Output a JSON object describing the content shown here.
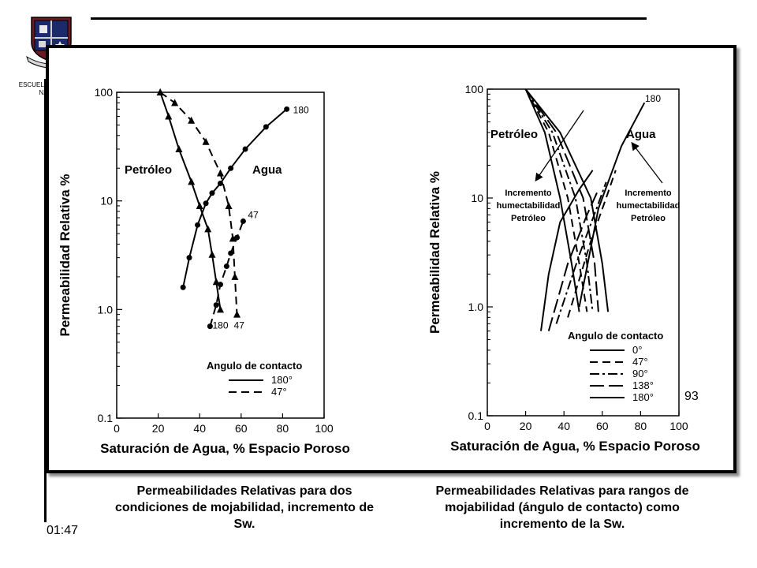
{
  "institution": {
    "name": "ESCUELA POLITECNICA NACIONAL"
  },
  "slide": {
    "page_number": "93",
    "time": "01:47",
    "captions": {
      "left": "Permeabilidades Relativas para dos condiciones de mojabilidad, incremento de Sw.",
      "right": "Permeabilidades Relativas para rangos de mojabilidad (ángulo de contacto) como incremento de la Sw."
    }
  },
  "chart_data": [
    {
      "type": "line",
      "xlabel": "Saturación de Agua, % Espacio Poroso",
      "ylabel": "Permeabilidad Relativa %",
      "xlim": [
        0,
        100
      ],
      "ylim": [
        0.1,
        100
      ],
      "y_scale": "log",
      "x_ticks": [
        "0",
        "20",
        "40",
        "60",
        "80",
        "100"
      ],
      "y_ticks": [
        {
          "value": 100,
          "label": "100"
        },
        {
          "value": 10,
          "label": "10"
        },
        {
          "value": 1,
          "label": "1.0"
        },
        {
          "value": 0.1,
          "label": "0.1"
        }
      ],
      "annotations": [
        "Petróleo",
        "Agua"
      ],
      "legend": {
        "title": "Angulo de contacto",
        "position": "bottom-right",
        "entries": [
          {
            "label": "180°",
            "style": "solid"
          },
          {
            "label": "47°",
            "style": "dashed"
          }
        ]
      },
      "series": [
        {
          "phase": "oil",
          "angle": "180°",
          "style": "solid",
          "marker": "triangle",
          "x": [
            21,
            25,
            30,
            36,
            40,
            44,
            46,
            48,
            50
          ],
          "y": [
            100,
            60,
            30,
            15,
            9,
            5.5,
            3.2,
            1.8,
            1.0
          ],
          "end_label": "180"
        },
        {
          "phase": "oil",
          "angle": "47°",
          "style": "dashed",
          "marker": "triangle",
          "x": [
            21,
            28,
            36,
            43,
            50,
            54,
            56,
            57,
            58
          ],
          "y": [
            100,
            80,
            55,
            35,
            18,
            9,
            4.5,
            2.0,
            0.9
          ],
          "end_label": "47"
        },
        {
          "phase": "water",
          "angle": "180°",
          "style": "solid",
          "marker": "circle",
          "x": [
            32,
            35,
            39,
            43,
            46,
            50,
            55,
            62,
            72,
            82
          ],
          "y": [
            1.6,
            3.0,
            6.0,
            9.5,
            11.8,
            14.5,
            20,
            30,
            48,
            70
          ],
          "end_label": "180"
        },
        {
          "phase": "water",
          "angle": "47°",
          "style": "dashed",
          "marker": "circle",
          "x": [
            45,
            48,
            50,
            53,
            55,
            58,
            61
          ],
          "y": [
            0.7,
            1.1,
            1.7,
            2.5,
            3.3,
            4.6,
            6.5
          ],
          "end_label": "47"
        }
      ]
    },
    {
      "type": "line",
      "xlabel": "Saturación de Agua, % Espacio Poroso",
      "ylabel": "Permeabilidad Relativa %",
      "xlim": [
        0,
        100
      ],
      "ylim": [
        0.1,
        100
      ],
      "y_scale": "log",
      "x_ticks": [
        "0",
        "20",
        "40",
        "60",
        "80",
        "100"
      ],
      "y_ticks": [
        {
          "value": 100,
          "label": "100"
        },
        {
          "value": 10,
          "label": "10"
        },
        {
          "value": 1,
          "label": "1.0"
        },
        {
          "value": 0.1,
          "label": "0.1"
        }
      ],
      "annotations": [
        "Petróleo",
        "Agua",
        "180",
        "Incremento humectabilidad Petróleo",
        "Incremento humectabilidad Petróleo"
      ],
      "legend": {
        "title": "Angulo de contacto",
        "position": "bottom-right",
        "entries": [
          {
            "label": "0°",
            "style": "solid"
          },
          {
            "label": "47°",
            "style": "dashed"
          },
          {
            "label": "90°",
            "style": "dash-dot"
          },
          {
            "label": "138°",
            "style": "long-dash"
          },
          {
            "label": "180°",
            "style": "solid"
          }
        ]
      },
      "series": [
        {
          "phase": "oil",
          "angle": "0°",
          "style": "solid",
          "x": [
            20,
            30,
            38,
            44,
            48
          ],
          "y": [
            100,
            40,
            10,
            2.5,
            0.9
          ]
        },
        {
          "phase": "oil",
          "angle": "47°",
          "style": "dashed",
          "x": [
            20,
            32,
            42,
            48,
            52
          ],
          "y": [
            100,
            40,
            10,
            2.5,
            0.9
          ]
        },
        {
          "phase": "oil",
          "angle": "90°",
          "style": "dash-dot",
          "x": [
            20,
            34,
            46,
            52,
            55
          ],
          "y": [
            100,
            40,
            10,
            2.5,
            0.9
          ]
        },
        {
          "phase": "oil",
          "angle": "138°",
          "style": "long-dash",
          "x": [
            20,
            36,
            50,
            56,
            58
          ],
          "y": [
            100,
            40,
            10,
            2.5,
            0.9
          ]
        },
        {
          "phase": "oil",
          "angle": "180°",
          "style": "solid",
          "x": [
            20,
            38,
            54,
            60,
            63
          ],
          "y": [
            100,
            40,
            10,
            2.5,
            0.9
          ]
        },
        {
          "phase": "water",
          "angle": "0°",
          "style": "solid",
          "x": [
            48,
            58,
            70,
            82
          ],
          "y": [
            1.0,
            8,
            30,
            75
          ]
        },
        {
          "phase": "water",
          "angle": "47°",
          "style": "dashed",
          "x": [
            42,
            54,
            62,
            67
          ],
          "y": [
            0.8,
            4,
            10,
            18
          ]
        },
        {
          "phase": "water",
          "angle": "90°",
          "style": "dash-dot",
          "x": [
            36,
            48,
            57,
            62
          ],
          "y": [
            0.7,
            3,
            8,
            14
          ]
        },
        {
          "phase": "water",
          "angle": "138°",
          "style": "long-dash",
          "x": [
            32,
            42,
            52,
            58
          ],
          "y": [
            0.6,
            2.5,
            7,
            12
          ]
        },
        {
          "phase": "water",
          "angle": "180°",
          "style": "solid",
          "x": [
            28,
            32,
            38,
            48,
            55
          ],
          "y": [
            0.6,
            2,
            6,
            12,
            18
          ]
        }
      ]
    }
  ]
}
